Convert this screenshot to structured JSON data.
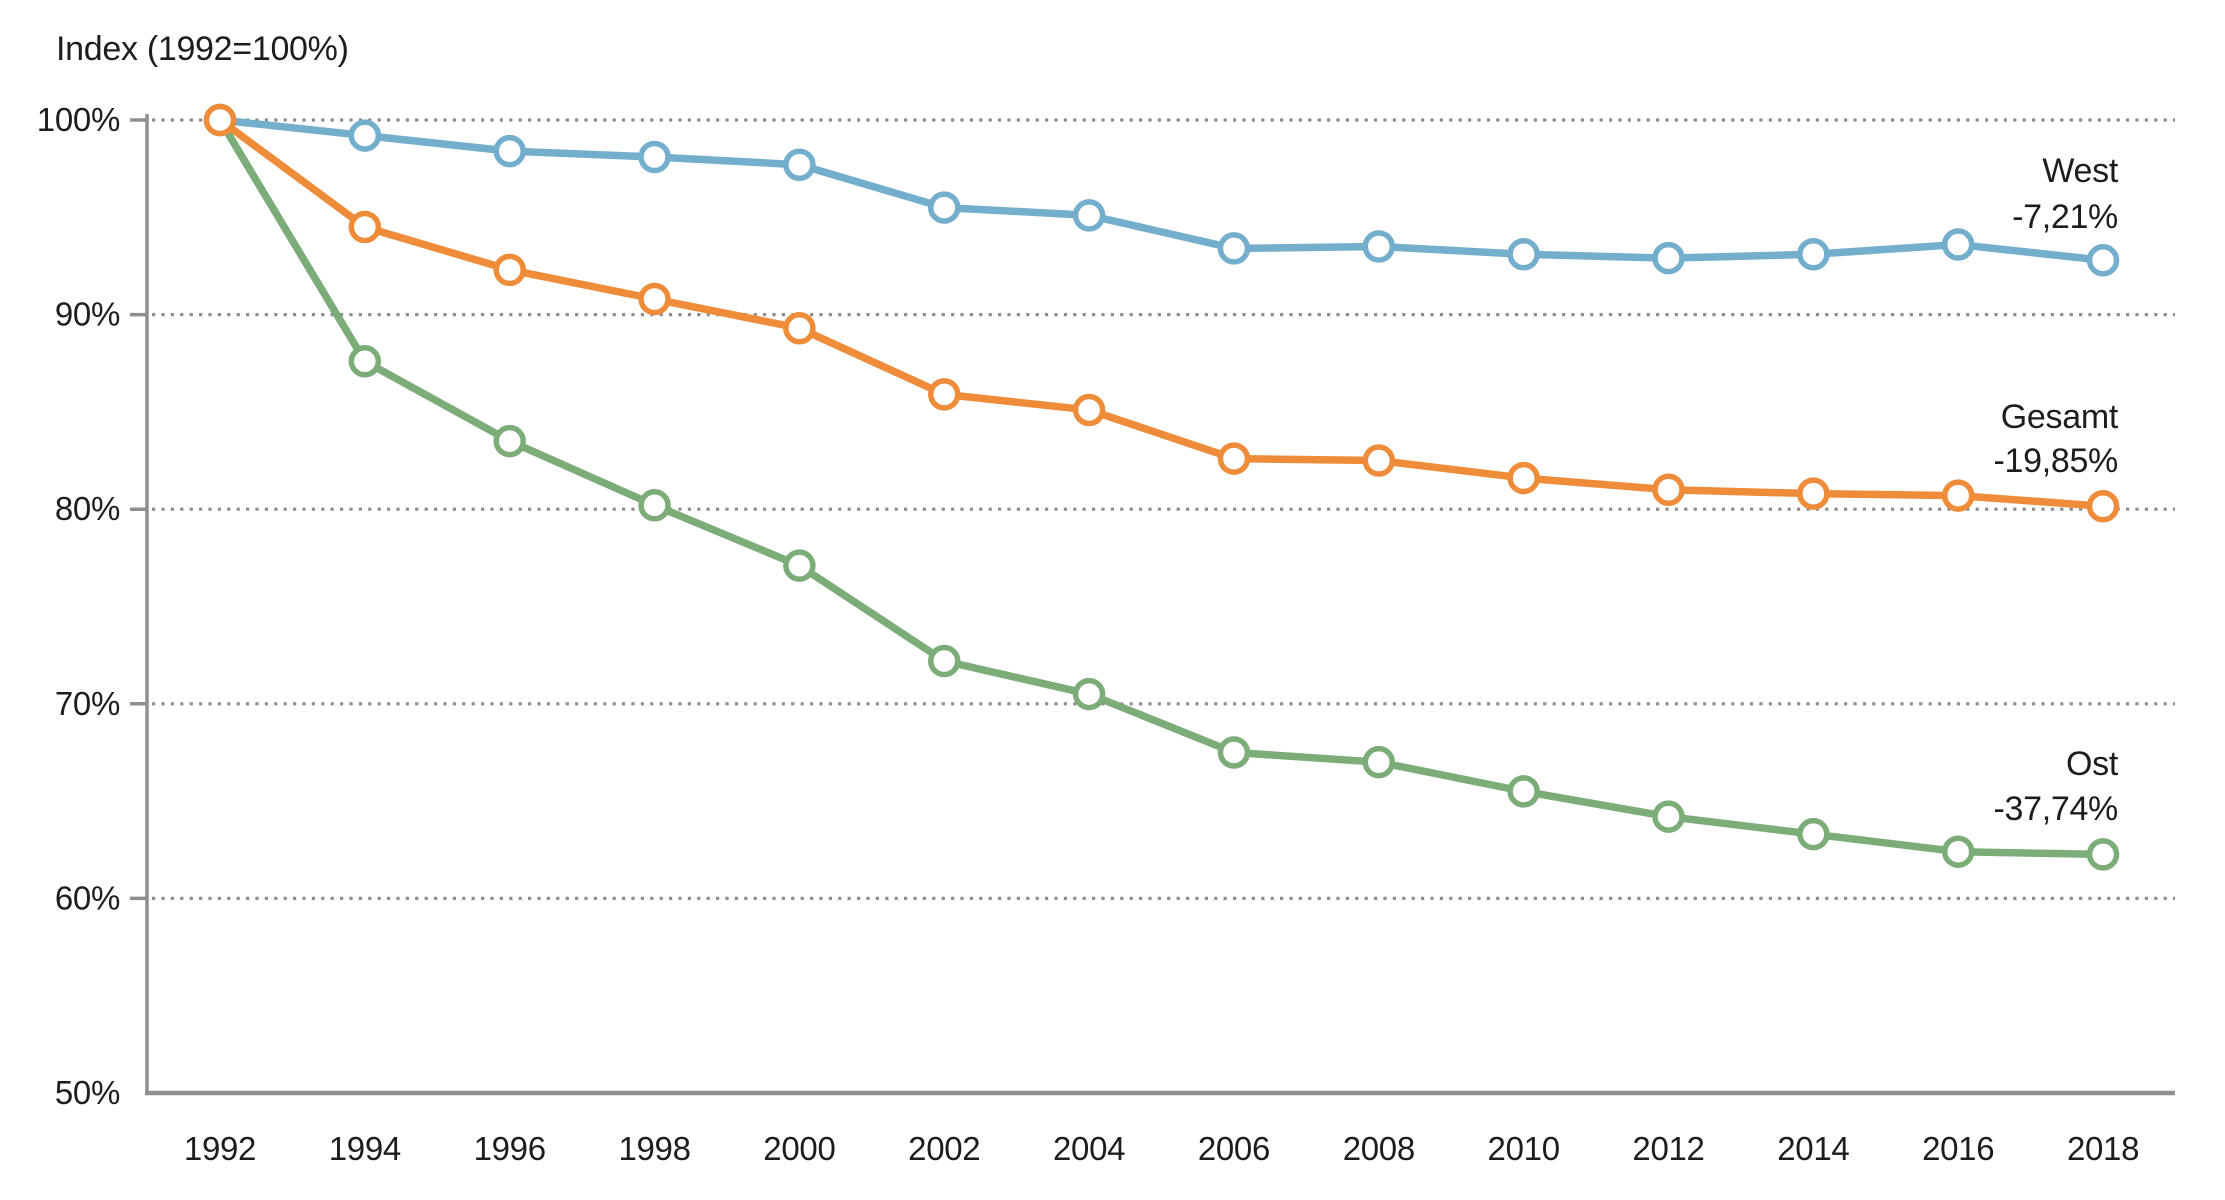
{
  "title": "Index (1992=100%)",
  "colors": {
    "west": "#73aecd",
    "gesamt": "#ef8c3a",
    "ost": "#7cad79",
    "grid": "#8e8e8e",
    "axis": "#8f8f8f",
    "text": "#1d1d1b",
    "marker_fill": "#ffffff"
  },
  "chart_data": {
    "type": "line",
    "title": "Index (1992=100%)",
    "x": [
      1992,
      1994,
      1996,
      1998,
      2000,
      2002,
      2004,
      2006,
      2008,
      2010,
      2012,
      2014,
      2016,
      2018
    ],
    "x_tick_labels": [
      "1992",
      "1994",
      "1996",
      "1998",
      "2000",
      "2002",
      "2004",
      "2006",
      "2008",
      "2010",
      "2012",
      "2014",
      "2016",
      "2018"
    ],
    "ylim": [
      50,
      100
    ],
    "y_ticks": [
      100,
      90,
      80,
      70,
      60,
      50
    ],
    "y_tick_labels": [
      "100%",
      "90%",
      "80%",
      "70%",
      "60%",
      "50%"
    ],
    "grid": "horizontal-dotted",
    "legend_position": "right-annotations",
    "series": [
      {
        "name": "West",
        "color_key": "west",
        "annotation_lines": [
          "West",
          "-7,21%"
        ],
        "values": [
          100,
          99.2,
          98.4,
          98.1,
          97.7,
          95.5,
          95.1,
          93.4,
          93.5,
          93.1,
          92.9,
          93.1,
          93.6,
          92.79
        ]
      },
      {
        "name": "Gesamt",
        "color_key": "gesamt",
        "annotation_lines": [
          "Gesamt",
          "-19,85%"
        ],
        "values": [
          100,
          94.5,
          92.3,
          90.8,
          89.3,
          85.9,
          85.1,
          82.6,
          82.5,
          81.6,
          81.0,
          80.8,
          80.7,
          80.15
        ]
      },
      {
        "name": "Ost",
        "color_key": "ost",
        "annotation_lines": [
          "Ost",
          "-37,74%"
        ],
        "values": [
          100,
          87.6,
          83.5,
          80.2,
          77.1,
          72.2,
          70.5,
          67.5,
          67.0,
          65.5,
          64.2,
          63.3,
          62.4,
          62.26
        ]
      }
    ]
  }
}
